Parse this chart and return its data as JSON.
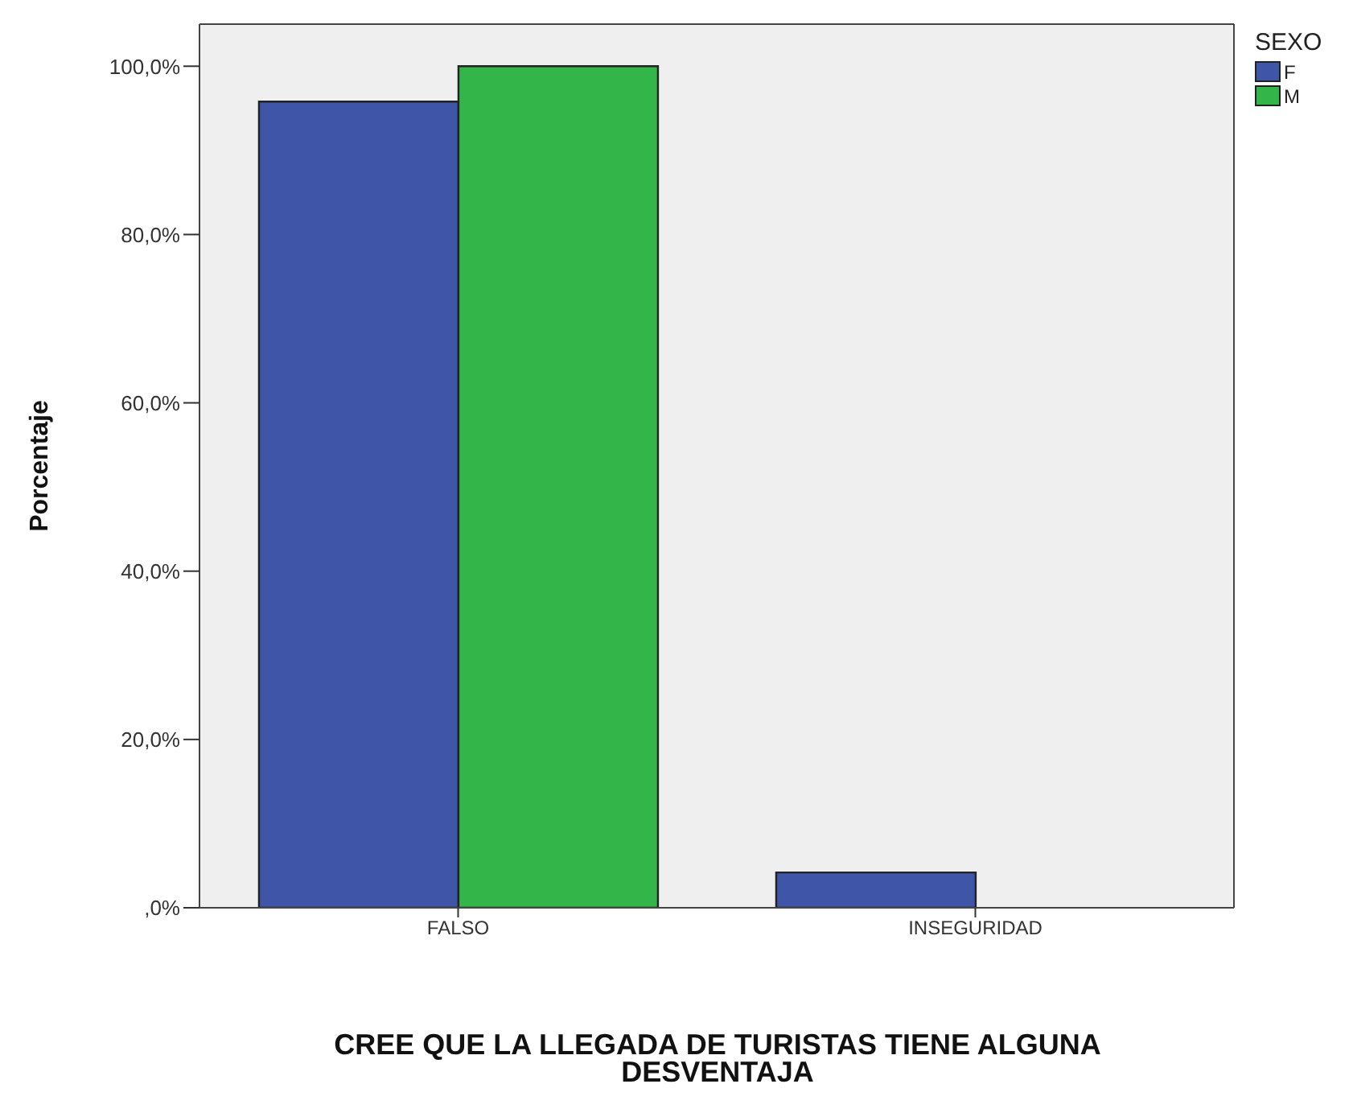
{
  "chart_data": {
    "type": "bar",
    "xlabel": "CREE QUE LA LLEGADA DE TURISTAS TIENE ALGUNA DESVENTAJA",
    "ylabel": "Porcentaje",
    "legend_title": "SEXO",
    "categories": [
      "FALSO",
      "INSEGURIDAD"
    ],
    "series": [
      {
        "name": "F",
        "color": "#3e55a8",
        "values": [
          95.8,
          4.2
        ]
      },
      {
        "name": "M",
        "color": "#33b54a",
        "values": [
          100,
          0
        ]
      }
    ],
    "ylim": [
      0,
      105
    ],
    "yticks": [
      {
        "value": 0,
        "label": ",0%"
      },
      {
        "value": 20,
        "label": "20,0%"
      },
      {
        "value": 40,
        "label": "40,0%"
      },
      {
        "value": 60,
        "label": "60,0%"
      },
      {
        "value": 80,
        "label": "80,0%"
      },
      {
        "value": 100,
        "label": "100,0%"
      }
    ],
    "grid": false,
    "legend": "top right"
  }
}
